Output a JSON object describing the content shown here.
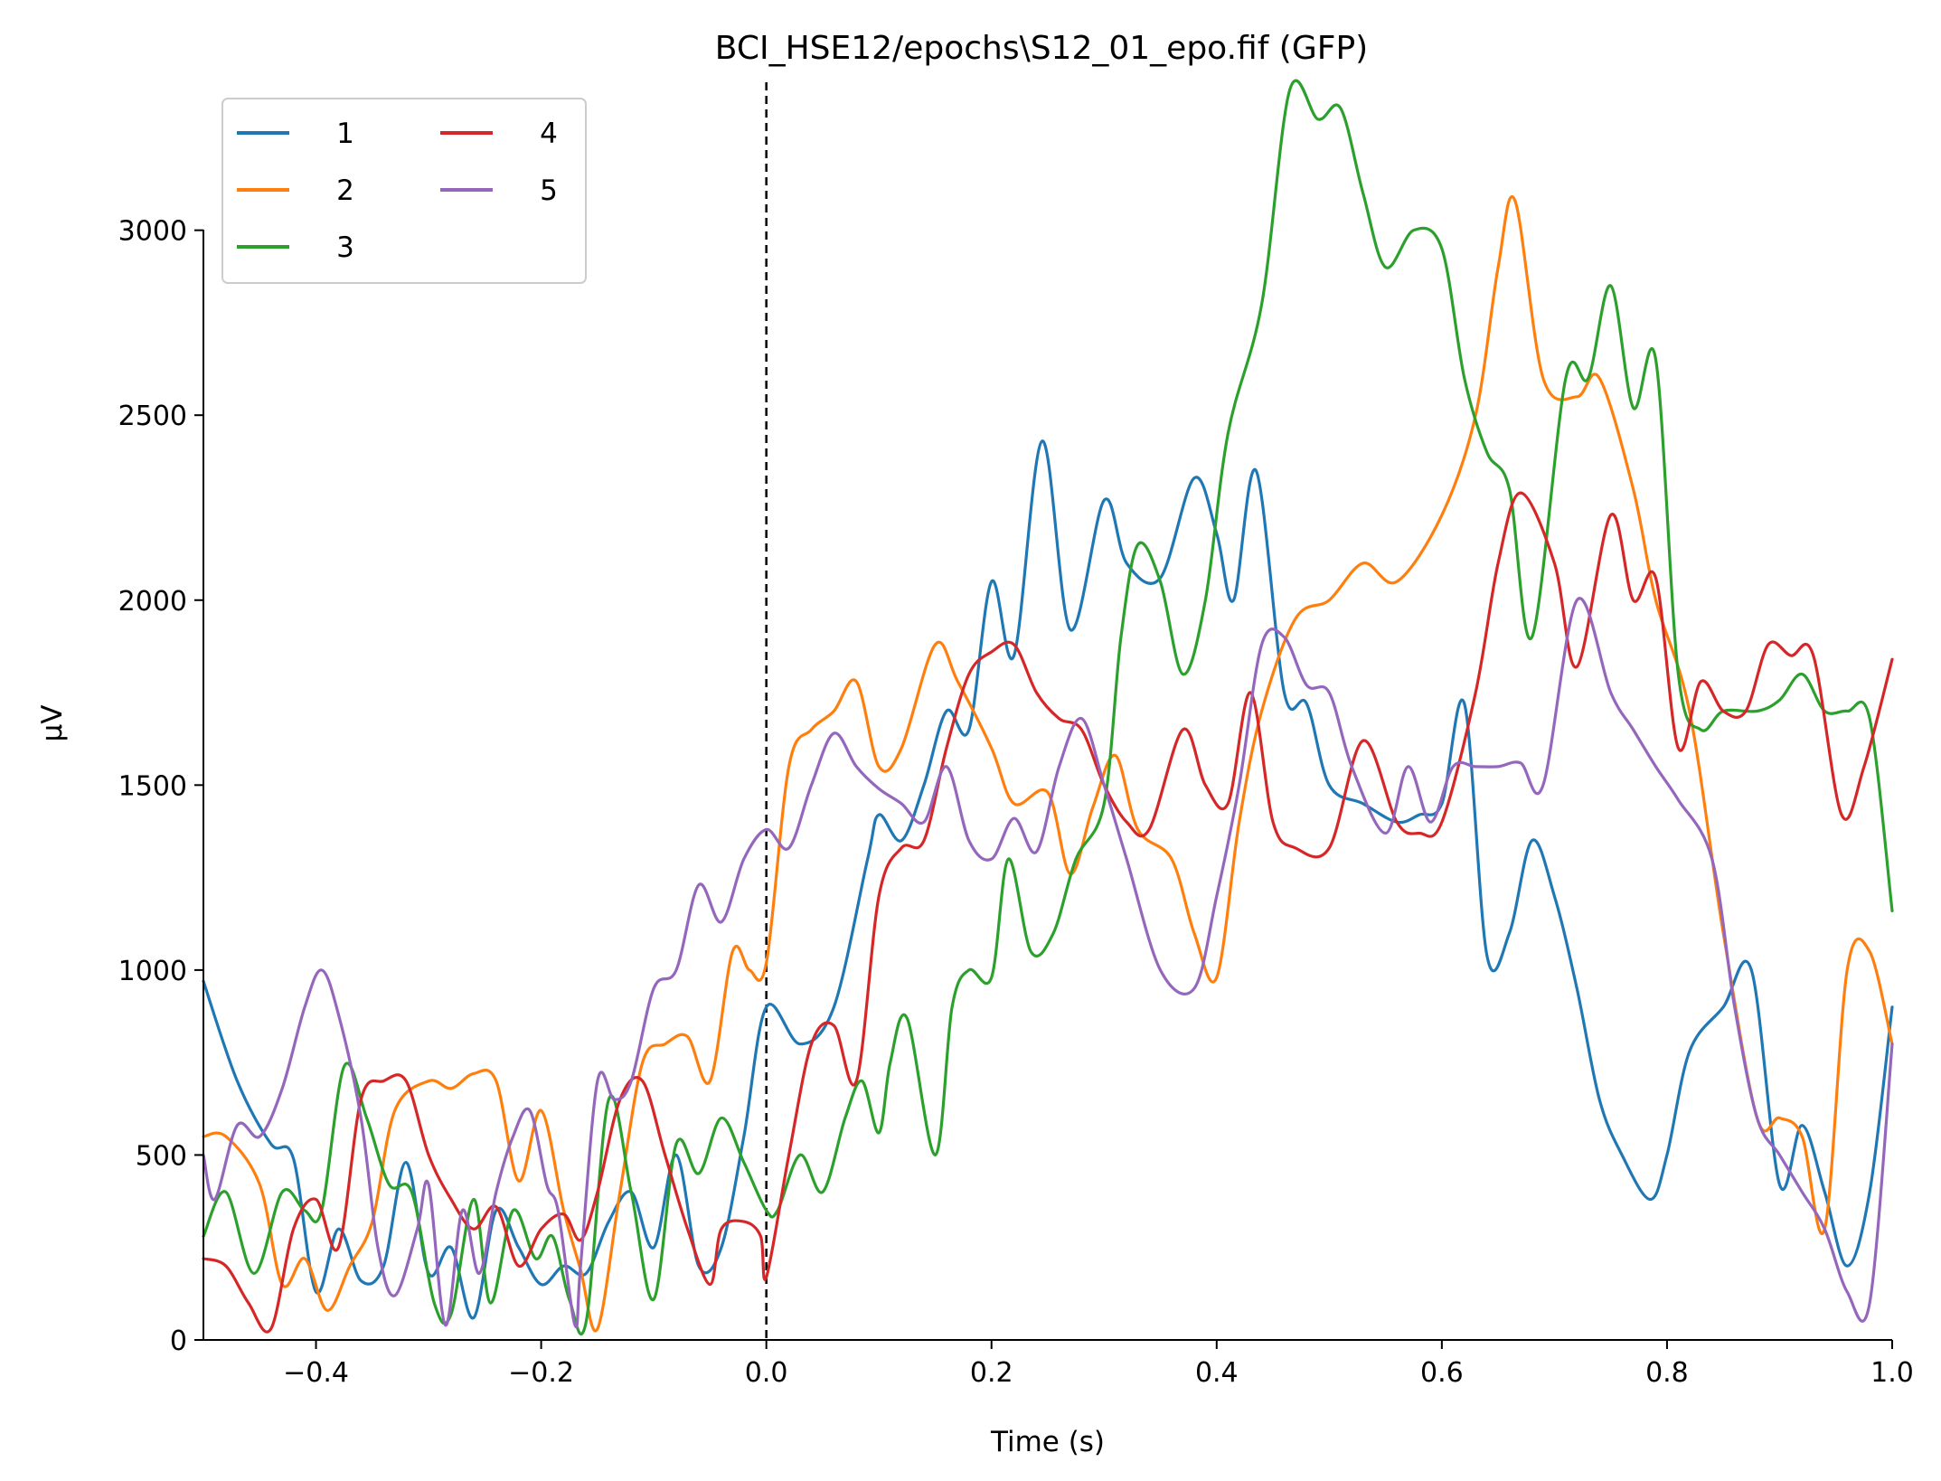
{
  "chart_data": {
    "type": "line",
    "title": "BCI_HSE12/epochs\\S12_01_epo.fif (GFP)",
    "xlabel": "Time (s)",
    "ylabel": "µV",
    "xlim": [
      -0.5,
      1.0
    ],
    "ylim": [
      0,
      3400
    ],
    "xticks": [
      -0.4,
      -0.2,
      0.0,
      0.2,
      0.4,
      0.6,
      0.8,
      1.0
    ],
    "xtick_labels": [
      "−0.4",
      "−0.2",
      "0.0",
      "0.2",
      "0.4",
      "0.6",
      "0.8",
      "1.0"
    ],
    "yticks": [
      0,
      500,
      1000,
      1500,
      2000,
      2500,
      3000
    ],
    "ytick_labels": [
      "0",
      "500",
      "1000",
      "1500",
      "2000",
      "2500",
      "3000"
    ],
    "grid": false,
    "legend_position": "top-left",
    "legend_columns": 2,
    "event_marker": {
      "x": 0.0,
      "style": "dashed",
      "color": "#000000"
    },
    "series": [
      {
        "name": "1",
        "color": "#1f77b4",
        "x": [
          -0.5,
          -0.47,
          -0.44,
          -0.42,
          -0.4,
          -0.38,
          -0.36,
          -0.34,
          -0.32,
          -0.3,
          -0.28,
          -0.26,
          -0.24,
          -0.22,
          -0.2,
          -0.18,
          -0.16,
          -0.14,
          -0.12,
          -0.1,
          -0.08,
          -0.06,
          -0.04,
          -0.02,
          0.0,
          0.03,
          0.06,
          0.09,
          0.1,
          0.12,
          0.14,
          0.16,
          0.18,
          0.2,
          0.22,
          0.245,
          0.27,
          0.3,
          0.32,
          0.35,
          0.38,
          0.4,
          0.415,
          0.435,
          0.46,
          0.48,
          0.5,
          0.53,
          0.56,
          0.58,
          0.6,
          0.62,
          0.64,
          0.66,
          0.68,
          0.7,
          0.72,
          0.74,
          0.76,
          0.785,
          0.8,
          0.82,
          0.85,
          0.875,
          0.9,
          0.92,
          0.94,
          0.96,
          0.98,
          1.0
        ],
        "values": [
          970,
          700,
          530,
          490,
          130,
          300,
          160,
          200,
          480,
          180,
          250,
          60,
          350,
          250,
          150,
          200,
          180,
          320,
          400,
          250,
          500,
          200,
          250,
          550,
          900,
          800,
          900,
          1300,
          1420,
          1350,
          1500,
          1700,
          1650,
          2050,
          1850,
          2430,
          1920,
          2270,
          2100,
          2060,
          2330,
          2180,
          2000,
          2350,
          1750,
          1720,
          1500,
          1450,
          1400,
          1420,
          1450,
          1720,
          1040,
          1100,
          1350,
          1200,
          950,
          650,
          500,
          380,
          500,
          780,
          900,
          1000,
          420,
          580,
          400,
          200,
          400,
          900
        ]
      },
      {
        "name": "2",
        "color": "#ff7f0e",
        "x": [
          -0.5,
          -0.48,
          -0.45,
          -0.43,
          -0.41,
          -0.39,
          -0.37,
          -0.35,
          -0.33,
          -0.3,
          -0.28,
          -0.26,
          -0.24,
          -0.22,
          -0.2,
          -0.18,
          -0.165,
          -0.15,
          -0.13,
          -0.11,
          -0.09,
          -0.07,
          -0.05,
          -0.03,
          -0.015,
          0.0,
          0.02,
          0.04,
          0.06,
          0.08,
          0.1,
          0.12,
          0.15,
          0.17,
          0.2,
          0.22,
          0.25,
          0.27,
          0.29,
          0.31,
          0.33,
          0.36,
          0.38,
          0.4,
          0.42,
          0.44,
          0.47,
          0.5,
          0.53,
          0.56,
          0.6,
          0.63,
          0.65,
          0.665,
          0.69,
          0.72,
          0.74,
          0.77,
          0.79,
          0.82,
          0.85,
          0.88,
          0.9,
          0.92,
          0.94,
          0.96,
          0.98,
          1.0
        ],
        "values": [
          550,
          550,
          420,
          150,
          220,
          80,
          200,
          320,
          620,
          700,
          680,
          720,
          700,
          430,
          620,
          350,
          190,
          30,
          400,
          750,
          800,
          820,
          700,
          1050,
          1000,
          1020,
          1550,
          1650,
          1700,
          1780,
          1550,
          1600,
          1880,
          1780,
          1600,
          1450,
          1480,
          1260,
          1440,
          1580,
          1380,
          1300,
          1100,
          980,
          1400,
          1700,
          1950,
          2000,
          2100,
          2050,
          2230,
          2500,
          2900,
          3080,
          2600,
          2550,
          2600,
          2300,
          2000,
          1700,
          1100,
          600,
          600,
          550,
          300,
          1000,
          1050,
          800
        ]
      },
      {
        "name": "3",
        "color": "#2ca02c",
        "x": [
          -0.5,
          -0.48,
          -0.455,
          -0.43,
          -0.41,
          -0.395,
          -0.375,
          -0.355,
          -0.335,
          -0.315,
          -0.295,
          -0.28,
          -0.26,
          -0.245,
          -0.225,
          -0.205,
          -0.19,
          -0.175,
          -0.16,
          -0.14,
          -0.12,
          -0.1,
          -0.08,
          -0.06,
          -0.04,
          -0.02,
          0.0,
          0.01,
          0.03,
          0.05,
          0.07,
          0.085,
          0.1,
          0.11,
          0.125,
          0.15,
          0.165,
          0.18,
          0.2,
          0.215,
          0.235,
          0.255,
          0.275,
          0.3,
          0.315,
          0.33,
          0.35,
          0.37,
          0.39,
          0.41,
          0.44,
          0.465,
          0.49,
          0.51,
          0.53,
          0.55,
          0.575,
          0.6,
          0.62,
          0.64,
          0.66,
          0.68,
          0.71,
          0.73,
          0.75,
          0.77,
          0.79,
          0.81,
          0.83,
          0.85,
          0.88,
          0.9,
          0.92,
          0.94,
          0.96,
          0.98,
          1.0
        ],
        "values": [
          280,
          400,
          180,
          400,
          350,
          350,
          740,
          600,
          420,
          400,
          100,
          70,
          380,
          100,
          350,
          220,
          280,
          110,
          50,
          650,
          400,
          110,
          530,
          450,
          600,
          480,
          350,
          350,
          500,
          400,
          600,
          700,
          560,
          750,
          870,
          500,
          900,
          1000,
          980,
          1300,
          1050,
          1100,
          1300,
          1450,
          1900,
          2150,
          2050,
          1800,
          2000,
          2450,
          2800,
          3380,
          3300,
          3330,
          3100,
          2900,
          3000,
          2950,
          2600,
          2400,
          2300,
          1900,
          2600,
          2600,
          2850,
          2520,
          2650,
          1800,
          1650,
          1700,
          1700,
          1730,
          1800,
          1700,
          1700,
          1680,
          1160
        ]
      },
      {
        "name": "4",
        "color": "#d62728",
        "x": [
          -0.5,
          -0.48,
          -0.46,
          -0.44,
          -0.42,
          -0.4,
          -0.38,
          -0.36,
          -0.34,
          -0.32,
          -0.3,
          -0.28,
          -0.26,
          -0.24,
          -0.22,
          -0.2,
          -0.18,
          -0.165,
          -0.15,
          -0.13,
          -0.11,
          -0.09,
          -0.07,
          -0.05,
          -0.04,
          -0.02,
          -0.005,
          0.0,
          0.02,
          0.04,
          0.06,
          0.08,
          0.1,
          0.12,
          0.14,
          0.16,
          0.18,
          0.2,
          0.22,
          0.24,
          0.26,
          0.28,
          0.3,
          0.32,
          0.34,
          0.37,
          0.39,
          0.41,
          0.43,
          0.45,
          0.47,
          0.5,
          0.53,
          0.56,
          0.58,
          0.6,
          0.63,
          0.65,
          0.67,
          0.7,
          0.72,
          0.75,
          0.77,
          0.79,
          0.81,
          0.83,
          0.85,
          0.87,
          0.89,
          0.91,
          0.93,
          0.955,
          0.975,
          1.0
        ],
        "values": [
          220,
          200,
          100,
          30,
          300,
          380,
          250,
          650,
          700,
          700,
          500,
          380,
          300,
          360,
          200,
          300,
          340,
          270,
          400,
          650,
          700,
          500,
          300,
          150,
          300,
          320,
          280,
          170,
          500,
          800,
          850,
          700,
          1200,
          1330,
          1350,
          1600,
          1800,
          1860,
          1880,
          1750,
          1680,
          1650,
          1500,
          1400,
          1380,
          1650,
          1500,
          1450,
          1750,
          1400,
          1330,
          1330,
          1620,
          1400,
          1370,
          1400,
          1750,
          2100,
          2290,
          2100,
          1820,
          2230,
          2000,
          2060,
          1600,
          1780,
          1700,
          1700,
          1880,
          1850,
          1850,
          1420,
          1550,
          1840
        ]
      },
      {
        "name": "5",
        "color": "#9467bd",
        "x": [
          -0.5,
          -0.49,
          -0.47,
          -0.45,
          -0.43,
          -0.41,
          -0.395,
          -0.38,
          -0.36,
          -0.345,
          -0.33,
          -0.31,
          -0.3,
          -0.285,
          -0.27,
          -0.255,
          -0.24,
          -0.225,
          -0.21,
          -0.195,
          -0.185,
          -0.17,
          -0.165,
          -0.15,
          -0.135,
          -0.12,
          -0.1,
          -0.08,
          -0.06,
          -0.04,
          -0.02,
          0.0,
          0.02,
          0.04,
          0.06,
          0.08,
          0.1,
          0.12,
          0.14,
          0.16,
          0.18,
          0.2,
          0.22,
          0.24,
          0.26,
          0.28,
          0.3,
          0.32,
          0.35,
          0.38,
          0.4,
          0.42,
          0.44,
          0.46,
          0.48,
          0.5,
          0.52,
          0.55,
          0.57,
          0.59,
          0.61,
          0.63,
          0.65,
          0.67,
          0.69,
          0.72,
          0.75,
          0.77,
          0.79,
          0.81,
          0.84,
          0.86,
          0.88,
          0.9,
          0.92,
          0.94,
          0.96,
          0.98,
          1.0
        ],
        "values": [
          500,
          380,
          580,
          550,
          680,
          900,
          1000,
          880,
          600,
          250,
          120,
          300,
          420,
          40,
          350,
          180,
          400,
          550,
          620,
          420,
          350,
          40,
          200,
          700,
          650,
          700,
          950,
          1000,
          1230,
          1130,
          1300,
          1380,
          1330,
          1500,
          1640,
          1550,
          1490,
          1450,
          1400,
          1550,
          1350,
          1300,
          1410,
          1320,
          1550,
          1680,
          1500,
          1300,
          1000,
          950,
          1200,
          1500,
          1880,
          1900,
          1770,
          1750,
          1550,
          1370,
          1550,
          1400,
          1550,
          1550,
          1550,
          1560,
          1500,
          2000,
          1750,
          1650,
          1550,
          1460,
          1300,
          900,
          600,
          500,
          400,
          300,
          130,
          100,
          800
        ]
      }
    ]
  }
}
